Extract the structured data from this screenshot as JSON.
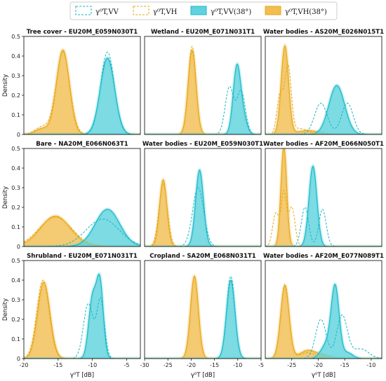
{
  "legend": {
    "items": [
      {
        "label": "γ⁰T,VV",
        "style": "dashed",
        "color": "#19b6c6"
      },
      {
        "label": "γ⁰T,VH",
        "style": "dashed",
        "color": "#e6a817"
      },
      {
        "label": "γ⁰T,VV(38°)",
        "style": "filled",
        "color": "#19b6c6"
      },
      {
        "label": "γ⁰T,VH(38°)",
        "style": "filled",
        "color": "#e6a817"
      }
    ]
  },
  "colors": {
    "vv": "#19b6c6",
    "vh": "#e6a817",
    "vv_fill": "#5fd3dd",
    "vh_fill": "#f2bd52"
  },
  "chart_data": [
    {
      "type": "area",
      "title": "Tree cover - EU20M_E059N030T1",
      "ylabel": "Density",
      "xlim": [
        -20,
        -3
      ],
      "ylim": [
        0,
        0.5
      ],
      "xticks": [],
      "yticks": [
        0,
        0.1,
        0.2,
        0.3,
        0.4,
        0.5
      ],
      "series": [
        {
          "name": "VV",
          "style": "dashed",
          "peaks": [
            [
              -7.8,
              0.42,
              1.0
            ]
          ]
        },
        {
          "name": "VH",
          "style": "dashed",
          "peaks": [
            [
              -14.3,
              0.42,
              1.0
            ],
            [
              -17.3,
              0.04,
              1.0
            ]
          ]
        },
        {
          "name": "VV(38°)",
          "style": "filled",
          "peaks": [
            [
              -7.8,
              0.39,
              1.05
            ]
          ]
        },
        {
          "name": "VH(38°)",
          "style": "filled",
          "peaks": [
            [
              -14.3,
              0.43,
              0.95
            ],
            [
              -17.3,
              0.03,
              1.0
            ]
          ]
        }
      ]
    },
    {
      "type": "area",
      "title": "Wetland - EU20M_E071N031T1",
      "ylabel": "",
      "xlim": [
        -30,
        -5
      ],
      "ylim": [
        0,
        0.5
      ],
      "xticks": [],
      "yticks": [],
      "series": [
        {
          "name": "VV",
          "style": "dashed",
          "peaks": [
            [
              -11.8,
              0.24,
              0.9
            ],
            [
              -9.3,
              0.22,
              0.9
            ]
          ]
        },
        {
          "name": "VH",
          "style": "dashed",
          "peaks": [
            [
              -19.8,
              0.45,
              0.85
            ]
          ]
        },
        {
          "name": "VV(38°)",
          "style": "filled",
          "peaks": [
            [
              -10.2,
              0.34,
              0.8
            ],
            [
              -8.8,
              0.08,
              0.8
            ]
          ]
        },
        {
          "name": "VH(38°)",
          "style": "filled",
          "peaks": [
            [
              -19.8,
              0.43,
              0.85
            ]
          ]
        }
      ]
    },
    {
      "type": "area",
      "title": "Water bodies - AS20M_E026N015T1",
      "ylabel": "",
      "xlim": [
        -30,
        -8
      ],
      "ylim": [
        0,
        0.5
      ],
      "xticks": [],
      "yticks": [],
      "series": [
        {
          "name": "VV",
          "style": "dashed",
          "peaks": [
            [
              -19.5,
              0.16,
              1.2
            ],
            [
              -14.5,
              0.16,
              1.1
            ]
          ]
        },
        {
          "name": "VH",
          "style": "dashed",
          "peaks": [
            [
              -25.7,
              0.34,
              0.6
            ],
            [
              -27.2,
              0.2,
              0.6
            ],
            [
              -23.5,
              0.03,
              1.5
            ]
          ]
        },
        {
          "name": "VV(38°)",
          "style": "filled",
          "peaks": [
            [
              -16.5,
              0.25,
              1.5
            ]
          ]
        },
        {
          "name": "VH(38°)",
          "style": "filled",
          "peaks": [
            [
              -26.3,
              0.45,
              0.7
            ],
            [
              -22.0,
              0.02,
              2.0
            ]
          ]
        }
      ]
    },
    {
      "type": "area",
      "title": "Bare - NA20M_E066N063T1",
      "ylabel": "Density",
      "xlim": [
        -20,
        -3
      ],
      "ylim": [
        0,
        0.5
      ],
      "xticks": [],
      "yticks": [
        0,
        0.1,
        0.2,
        0.3,
        0.4,
        0.5
      ],
      "series": [
        {
          "name": "VV",
          "style": "dashed",
          "peaks": [
            [
              -8.5,
              0.14,
              2.4
            ]
          ]
        },
        {
          "name": "VH",
          "style": "dashed",
          "peaks": [
            [
              -15.4,
              0.15,
              2.4
            ]
          ]
        },
        {
          "name": "VV(38°)",
          "style": "filled",
          "peaks": [
            [
              -7.8,
              0.19,
              1.8
            ]
          ]
        },
        {
          "name": "VH(38°)",
          "style": "filled",
          "peaks": [
            [
              -15.4,
              0.155,
              2.2
            ]
          ]
        }
      ]
    },
    {
      "type": "area",
      "title": "Water bodies - EU20M_E059N030T1",
      "ylabel": "",
      "xlim": [
        -30,
        -5
      ],
      "ylim": [
        0,
        0.5
      ],
      "xticks": [],
      "yticks": [],
      "series": [
        {
          "name": "VV",
          "style": "dashed",
          "peaks": [
            [
              -18.5,
              0.3,
              1.2
            ]
          ]
        },
        {
          "name": "VH",
          "style": "dashed",
          "peaks": [
            [
              -26.0,
              0.32,
              0.9
            ]
          ]
        },
        {
          "name": "VV(38°)",
          "style": "filled",
          "peaks": [
            [
              -18.2,
              0.39,
              0.85
            ]
          ]
        },
        {
          "name": "VH(38°)",
          "style": "filled",
          "peaks": [
            [
              -26.0,
              0.34,
              0.8
            ]
          ]
        }
      ]
    },
    {
      "type": "area",
      "title": "Water bodies - AF20M_E066N050T1",
      "ylabel": "",
      "xlim": [
        -30,
        -8
      ],
      "ylim": [
        0,
        0.5
      ],
      "xticks": [],
      "yticks": [],
      "series": [
        {
          "name": "VV",
          "style": "dashed",
          "peaks": [
            [
              -22.5,
              0.2,
              0.7
            ],
            [
              -19.2,
              0.19,
              0.7
            ]
          ]
        },
        {
          "name": "VH",
          "style": "dashed",
          "peaks": [
            [
              -28.0,
              0.17,
              0.6
            ],
            [
              -26.5,
              0.27,
              0.5
            ],
            [
              -25.0,
              0.2,
              0.6
            ]
          ]
        },
        {
          "name": "VV(38°)",
          "style": "filled",
          "peaks": [
            [
              -21.0,
              0.41,
              0.75
            ]
          ]
        },
        {
          "name": "VH(38°)",
          "style": "filled",
          "peaks": [
            [
              -26.5,
              0.51,
              0.55
            ]
          ]
        }
      ]
    },
    {
      "type": "area",
      "title": "Shrubland - EU20M_E071N031T1",
      "ylabel": "Density",
      "xlim": [
        -20,
        -3
      ],
      "ylim": [
        0,
        0.5
      ],
      "xticks": [
        -20,
        -15,
        -10,
        -5
      ],
      "yticks": [
        0,
        0.1,
        0.2,
        0.3,
        0.4,
        0.5
      ],
      "series": [
        {
          "name": "VV",
          "style": "dashed",
          "peaks": [
            [
              -10.6,
              0.28,
              0.7
            ],
            [
              -8.8,
              0.3,
              0.55
            ]
          ]
        },
        {
          "name": "VH",
          "style": "dashed",
          "peaks": [
            [
              -17.2,
              0.4,
              0.9
            ]
          ]
        },
        {
          "name": "VV(38°)",
          "style": "filled",
          "peaks": [
            [
              -10.0,
              0.3,
              0.55
            ],
            [
              -8.9,
              0.38,
              0.5
            ]
          ]
        },
        {
          "name": "VH(38°)",
          "style": "filled",
          "peaks": [
            [
              -17.1,
              0.39,
              0.9
            ]
          ]
        }
      ]
    },
    {
      "type": "area",
      "title": "Cropland - SA20M_E068N031T1",
      "ylabel": "",
      "xlim": [
        -30,
        -5
      ],
      "ylim": [
        0,
        0.5
      ],
      "xticks": [
        -30,
        -25,
        -20,
        -15,
        -10,
        -5
      ],
      "yticks": [],
      "series": [
        {
          "name": "VV",
          "style": "dashed",
          "peaks": [
            [
              -11.5,
              0.42,
              0.9
            ]
          ]
        },
        {
          "name": "VH",
          "style": "dashed",
          "peaks": [
            [
              -19.3,
              0.42,
              0.85
            ]
          ]
        },
        {
          "name": "VV(38°)",
          "style": "filled",
          "peaks": [
            [
              -11.5,
              0.4,
              0.9
            ]
          ]
        },
        {
          "name": "VH(38°)",
          "style": "filled",
          "peaks": [
            [
              -19.3,
              0.42,
              0.85
            ]
          ]
        }
      ]
    },
    {
      "type": "area",
      "title": "Water bodies - AF20M_E077N089T1",
      "ylabel": "",
      "xlim": [
        -30,
        -8
      ],
      "ylim": [
        0,
        0.5
      ],
      "xticks": [
        -25,
        -20,
        -15,
        -10
      ],
      "yticks": [],
      "series": [
        {
          "name": "VV",
          "style": "dashed",
          "peaks": [
            [
              -19.5,
              0.2,
              1.0
            ],
            [
              -15.5,
              0.22,
              1.0
            ],
            [
              -12.0,
              0.05,
              1.5
            ]
          ]
        },
        {
          "name": "VH",
          "style": "dashed",
          "peaks": [
            [
              -26.3,
              0.38,
              0.8
            ],
            [
              -22.0,
              0.03,
              1.5
            ]
          ]
        },
        {
          "name": "VV(38°)",
          "style": "filled",
          "peaks": [
            [
              -16.8,
              0.36,
              0.75
            ],
            [
              -18.5,
              0.07,
              1.0
            ],
            [
              -14.5,
              0.03,
              1.0
            ]
          ]
        },
        {
          "name": "VH(38°)",
          "style": "filled",
          "peaks": [
            [
              -26.3,
              0.37,
              0.8
            ],
            [
              -22.0,
              0.04,
              1.5
            ],
            [
              -19.0,
              0.015,
              1.5
            ]
          ]
        }
      ]
    }
  ],
  "axis": {
    "xlabel": "γ⁰T [dB]"
  }
}
